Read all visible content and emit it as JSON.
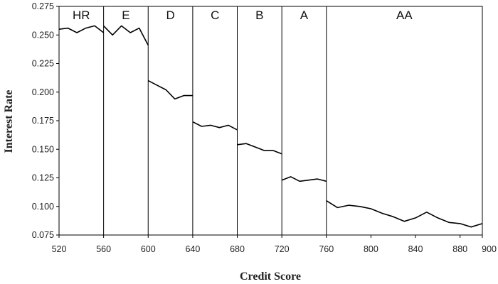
{
  "chart_data": {
    "type": "line",
    "xlabel": "Credit Score",
    "ylabel": "Interest Rate",
    "xlim": [
      520,
      900
    ],
    "ylim": [
      0.075,
      0.275
    ],
    "x_ticks": [
      520,
      560,
      600,
      640,
      680,
      720,
      760,
      800,
      840,
      880,
      900
    ],
    "x_tick_labels": [
      "520",
      "560",
      "600",
      "640",
      "680",
      "720",
      "760",
      "800",
      "840",
      "880",
      "900"
    ],
    "y_ticks": [
      0.075,
      0.1,
      0.125,
      0.15,
      0.175,
      0.2,
      0.225,
      0.25,
      0.275
    ],
    "y_tick_labels": [
      "0.075",
      "0.100",
      "0.125",
      "0.150",
      "0.175",
      "0.200",
      "0.225",
      "0.250",
      "0.275"
    ],
    "grid": false,
    "legend": "none",
    "line_color": "#000000",
    "grades": [
      {
        "label": "HR",
        "x_start": 520,
        "x_end": 560
      },
      {
        "label": "E",
        "x_start": 560,
        "x_end": 600
      },
      {
        "label": "D",
        "x_start": 600,
        "x_end": 640
      },
      {
        "label": "C",
        "x_start": 640,
        "x_end": 680
      },
      {
        "label": "B",
        "x_start": 680,
        "x_end": 720
      },
      {
        "label": "A",
        "x_start": 720,
        "x_end": 760
      },
      {
        "label": "AA",
        "x_start": 760,
        "x_end": 900
      }
    ],
    "series": [
      {
        "x": [
          520,
          528,
          536,
          544,
          552,
          560,
          560,
          568,
          576,
          584,
          592,
          600,
          600,
          608,
          616,
          624,
          632,
          640,
          640,
          648,
          656,
          664,
          672,
          680,
          680,
          688,
          696,
          704,
          712,
          720,
          720,
          728,
          736,
          744,
          752,
          760,
          760,
          770,
          780,
          790,
          800,
          810,
          820,
          830,
          840,
          850,
          860,
          870,
          880,
          890,
          900
        ],
        "y": [
          0.255,
          0.256,
          0.252,
          0.256,
          0.258,
          0.252,
          0.258,
          0.25,
          0.258,
          0.252,
          0.256,
          0.241,
          0.21,
          0.206,
          0.202,
          0.194,
          0.197,
          0.197,
          0.174,
          0.17,
          0.171,
          0.169,
          0.171,
          0.167,
          0.154,
          0.155,
          0.152,
          0.149,
          0.149,
          0.146,
          0.123,
          0.126,
          0.122,
          0.123,
          0.124,
          0.122,
          0.105,
          0.099,
          0.101,
          0.1,
          0.098,
          0.094,
          0.091,
          0.087,
          0.09,
          0.095,
          0.09,
          0.086,
          0.085,
          0.082,
          0.085
        ]
      }
    ]
  }
}
